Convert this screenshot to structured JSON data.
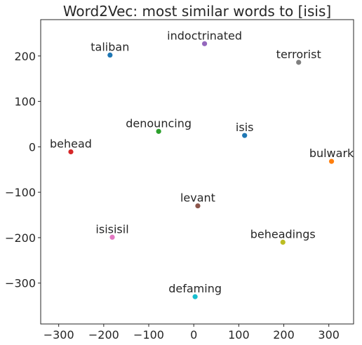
{
  "chart_data": {
    "type": "scatter",
    "title": "Word2Vec: most similar words to [isis]",
    "xlabel": "",
    "ylabel": "",
    "xlim": [
      -340,
      355
    ],
    "ylim": [
      -390,
      280
    ],
    "x_ticks": [
      -300,
      -200,
      -100,
      0,
      100,
      200,
      300
    ],
    "x_tick_labels": [
      "−300",
      "−200",
      "−100",
      "0",
      "100",
      "200",
      "300"
    ],
    "y_ticks": [
      200,
      100,
      0,
      -100,
      -200,
      -300
    ],
    "y_tick_labels": [
      "200",
      "100",
      "0",
      "−100",
      "−200",
      "−300"
    ],
    "grid": false,
    "legend": "none",
    "points": [
      {
        "label": "taliban",
        "x": -186,
        "y": 202,
        "color": "#1f77b4"
      },
      {
        "label": "bulwark",
        "x": 306,
        "y": -32,
        "color": "#ff7f0e"
      },
      {
        "label": "denouncing",
        "x": -78,
        "y": 34,
        "color": "#2ca02c"
      },
      {
        "label": "behead",
        "x": -273,
        "y": -11,
        "color": "#d62728"
      },
      {
        "label": "indoctrinated",
        "x": 24,
        "y": 227,
        "color": "#9467bd"
      },
      {
        "label": "levant",
        "x": 9,
        "y": -130,
        "color": "#8c564b"
      },
      {
        "label": "isisisil",
        "x": -181,
        "y": -199,
        "color": "#e377c2"
      },
      {
        "label": "terrorist",
        "x": 233,
        "y": 186,
        "color": "#7f7f7f"
      },
      {
        "label": "beheadings",
        "x": 198,
        "y": -210,
        "color": "#bcbd22"
      },
      {
        "label": "defaming",
        "x": 3,
        "y": -330,
        "color": "#17becf"
      },
      {
        "label": "isis",
        "x": 113,
        "y": 25,
        "color": "#1f77b4"
      }
    ]
  }
}
